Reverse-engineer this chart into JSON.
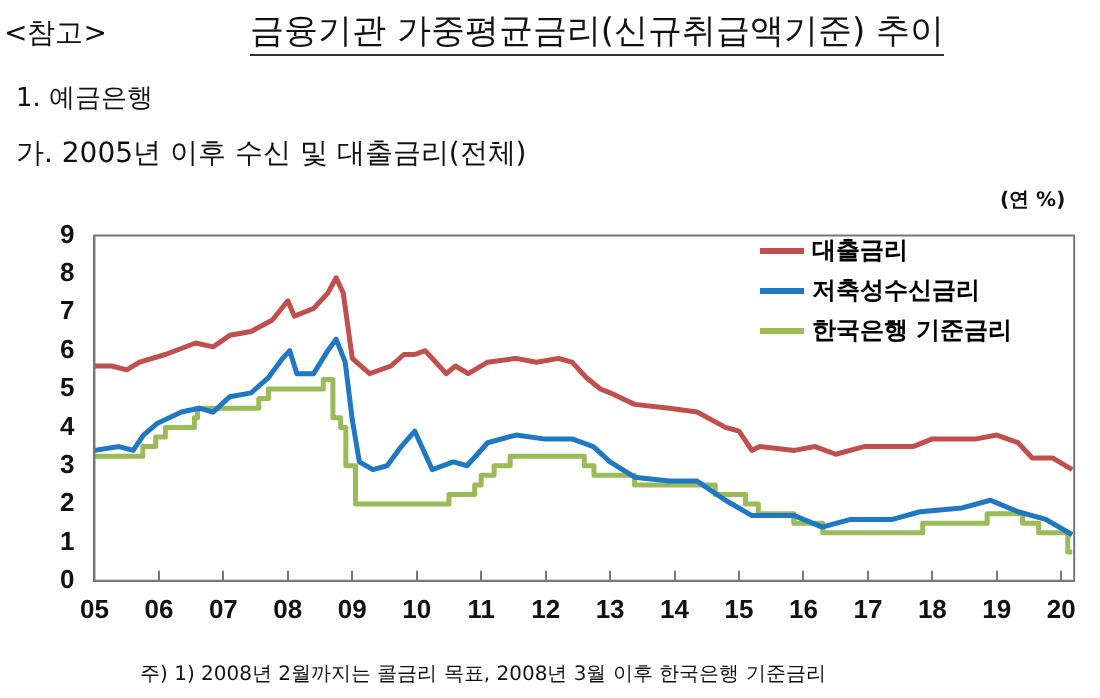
{
  "chart_data": {
    "type": "line",
    "title": "금융기관 가중평균금리(신규취급액기준) 추이",
    "subtitle": "가. 2005년 이후 수신 및 대출금리(전체)",
    "ylabel": "(연 %)",
    "annotations": [
      "<참고>",
      "1. 예금은행",
      "주) 1) 2008년 2월까지는 콜금리 목표, 2008년 3월 이후 한국은행 기준금리"
    ],
    "xlim": [
      2005,
      2020.2
    ],
    "xticks": [
      {
        "value": 2005,
        "label": "05"
      },
      {
        "value": 2006,
        "label": "06"
      },
      {
        "value": 2007,
        "label": "07"
      },
      {
        "value": 2008,
        "label": "08"
      },
      {
        "value": 2009,
        "label": "09"
      },
      {
        "value": 2010,
        "label": "10"
      },
      {
        "value": 2011,
        "label": "11"
      },
      {
        "value": 2012,
        "label": "12"
      },
      {
        "value": 2013,
        "label": "13"
      },
      {
        "value": 2014,
        "label": "14"
      },
      {
        "value": 2015,
        "label": "15"
      },
      {
        "value": 2016,
        "label": "16"
      },
      {
        "value": 2017,
        "label": "17"
      },
      {
        "value": 2018,
        "label": "18"
      },
      {
        "value": 2019,
        "label": "19"
      },
      {
        "value": 2020,
        "label": "20"
      }
    ],
    "ylim": [
      0,
      9
    ],
    "yticks": [
      0,
      1,
      2,
      3,
      4,
      5,
      6,
      7,
      8,
      9
    ],
    "grid": false,
    "legend": "top right",
    "marker": "none",
    "line_style": "solid",
    "series": [
      {
        "name": "대출금리",
        "color": "#c0504d",
        "x": [
          2005.0,
          2005.27,
          2005.5,
          2005.7,
          2006.1,
          2006.57,
          2006.84,
          2007.1,
          2007.43,
          2007.76,
          2008.0,
          2008.1,
          2008.4,
          2008.62,
          2008.75,
          2008.86,
          2009.0,
          2009.27,
          2009.6,
          2009.8,
          2009.97,
          2010.13,
          2010.46,
          2010.6,
          2010.8,
          2011.1,
          2011.54,
          2011.86,
          2012.2,
          2012.41,
          2012.63,
          2012.85,
          2013.0,
          2013.38,
          2013.92,
          2014.35,
          2014.79,
          2015.0,
          2015.2,
          2015.32,
          2015.86,
          2016.18,
          2016.5,
          2016.94,
          2017.7,
          2018.0,
          2018.68,
          2019.0,
          2019.33,
          2019.55,
          2019.87,
          2020.17
        ],
        "values": [
          5.6,
          5.6,
          5.5,
          5.7,
          5.9,
          6.2,
          6.1,
          6.4,
          6.5,
          6.8,
          7.3,
          6.9,
          7.1,
          7.5,
          7.9,
          7.5,
          5.8,
          5.4,
          5.6,
          5.9,
          5.9,
          6.0,
          5.4,
          5.6,
          5.4,
          5.7,
          5.8,
          5.7,
          5.8,
          5.7,
          5.3,
          5.0,
          4.9,
          4.6,
          4.5,
          4.4,
          4.0,
          3.9,
          3.4,
          3.5,
          3.4,
          3.5,
          3.3,
          3.5,
          3.5,
          3.7,
          3.7,
          3.8,
          3.6,
          3.2,
          3.2,
          2.9
        ]
      },
      {
        "name": "저축성수신금리",
        "color": "#1f78c1",
        "x": [
          2005.0,
          2005.38,
          2005.6,
          2005.76,
          2005.97,
          2006.35,
          2006.62,
          2006.84,
          2007.1,
          2007.43,
          2007.7,
          2007.92,
          2008.03,
          2008.14,
          2008.4,
          2008.62,
          2008.75,
          2008.89,
          2009.0,
          2009.11,
          2009.32,
          2009.54,
          2009.76,
          2009.97,
          2010.24,
          2010.57,
          2010.78,
          2011.1,
          2011.54,
          2011.97,
          2012.41,
          2012.74,
          2013.0,
          2013.38,
          2013.92,
          2014.35,
          2014.79,
          2015.2,
          2015.86,
          2016.29,
          2016.73,
          2017.38,
          2017.81,
          2018.46,
          2018.9,
          2019.33,
          2019.76,
          2020.17
        ],
        "values": [
          3.4,
          3.5,
          3.4,
          3.8,
          4.1,
          4.4,
          4.5,
          4.4,
          4.8,
          4.9,
          5.3,
          5.8,
          6.0,
          5.4,
          5.4,
          6.0,
          6.3,
          5.7,
          4.2,
          3.1,
          2.9,
          3.0,
          3.5,
          3.9,
          2.9,
          3.1,
          3.0,
          3.6,
          3.8,
          3.7,
          3.7,
          3.5,
          3.1,
          2.7,
          2.6,
          2.6,
          2.1,
          1.7,
          1.7,
          1.4,
          1.6,
          1.6,
          1.8,
          1.9,
          2.1,
          1.8,
          1.6,
          1.2
        ]
      },
      {
        "name": "한국은행 기준금리",
        "type": "step",
        "color": "#9bbb59",
        "x": [
          2005.0,
          2005.75,
          2005.95,
          2006.1,
          2006.55,
          2006.6,
          2007.55,
          2007.7,
          2008.55,
          2008.7,
          2008.82,
          2008.9,
          2009.05,
          2010.5,
          2010.9,
          2011.0,
          2011.2,
          2011.45,
          2012.6,
          2012.75,
          2013.38,
          2014.63,
          2015.1,
          2015.3,
          2015.85,
          2016.3,
          2017.85,
          2018.85,
          2019.4,
          2019.65,
          2020.1,
          2020.17
        ],
        "values": [
          3.25,
          3.5,
          3.75,
          4.0,
          4.25,
          4.5,
          4.75,
          5.0,
          5.25,
          4.25,
          4.0,
          3.0,
          2.0,
          2.25,
          2.5,
          2.75,
          3.0,
          3.25,
          3.0,
          2.75,
          2.5,
          2.25,
          2.0,
          1.75,
          1.5,
          1.25,
          1.5,
          1.75,
          1.5,
          1.25,
          0.75,
          0.75
        ]
      }
    ]
  }
}
